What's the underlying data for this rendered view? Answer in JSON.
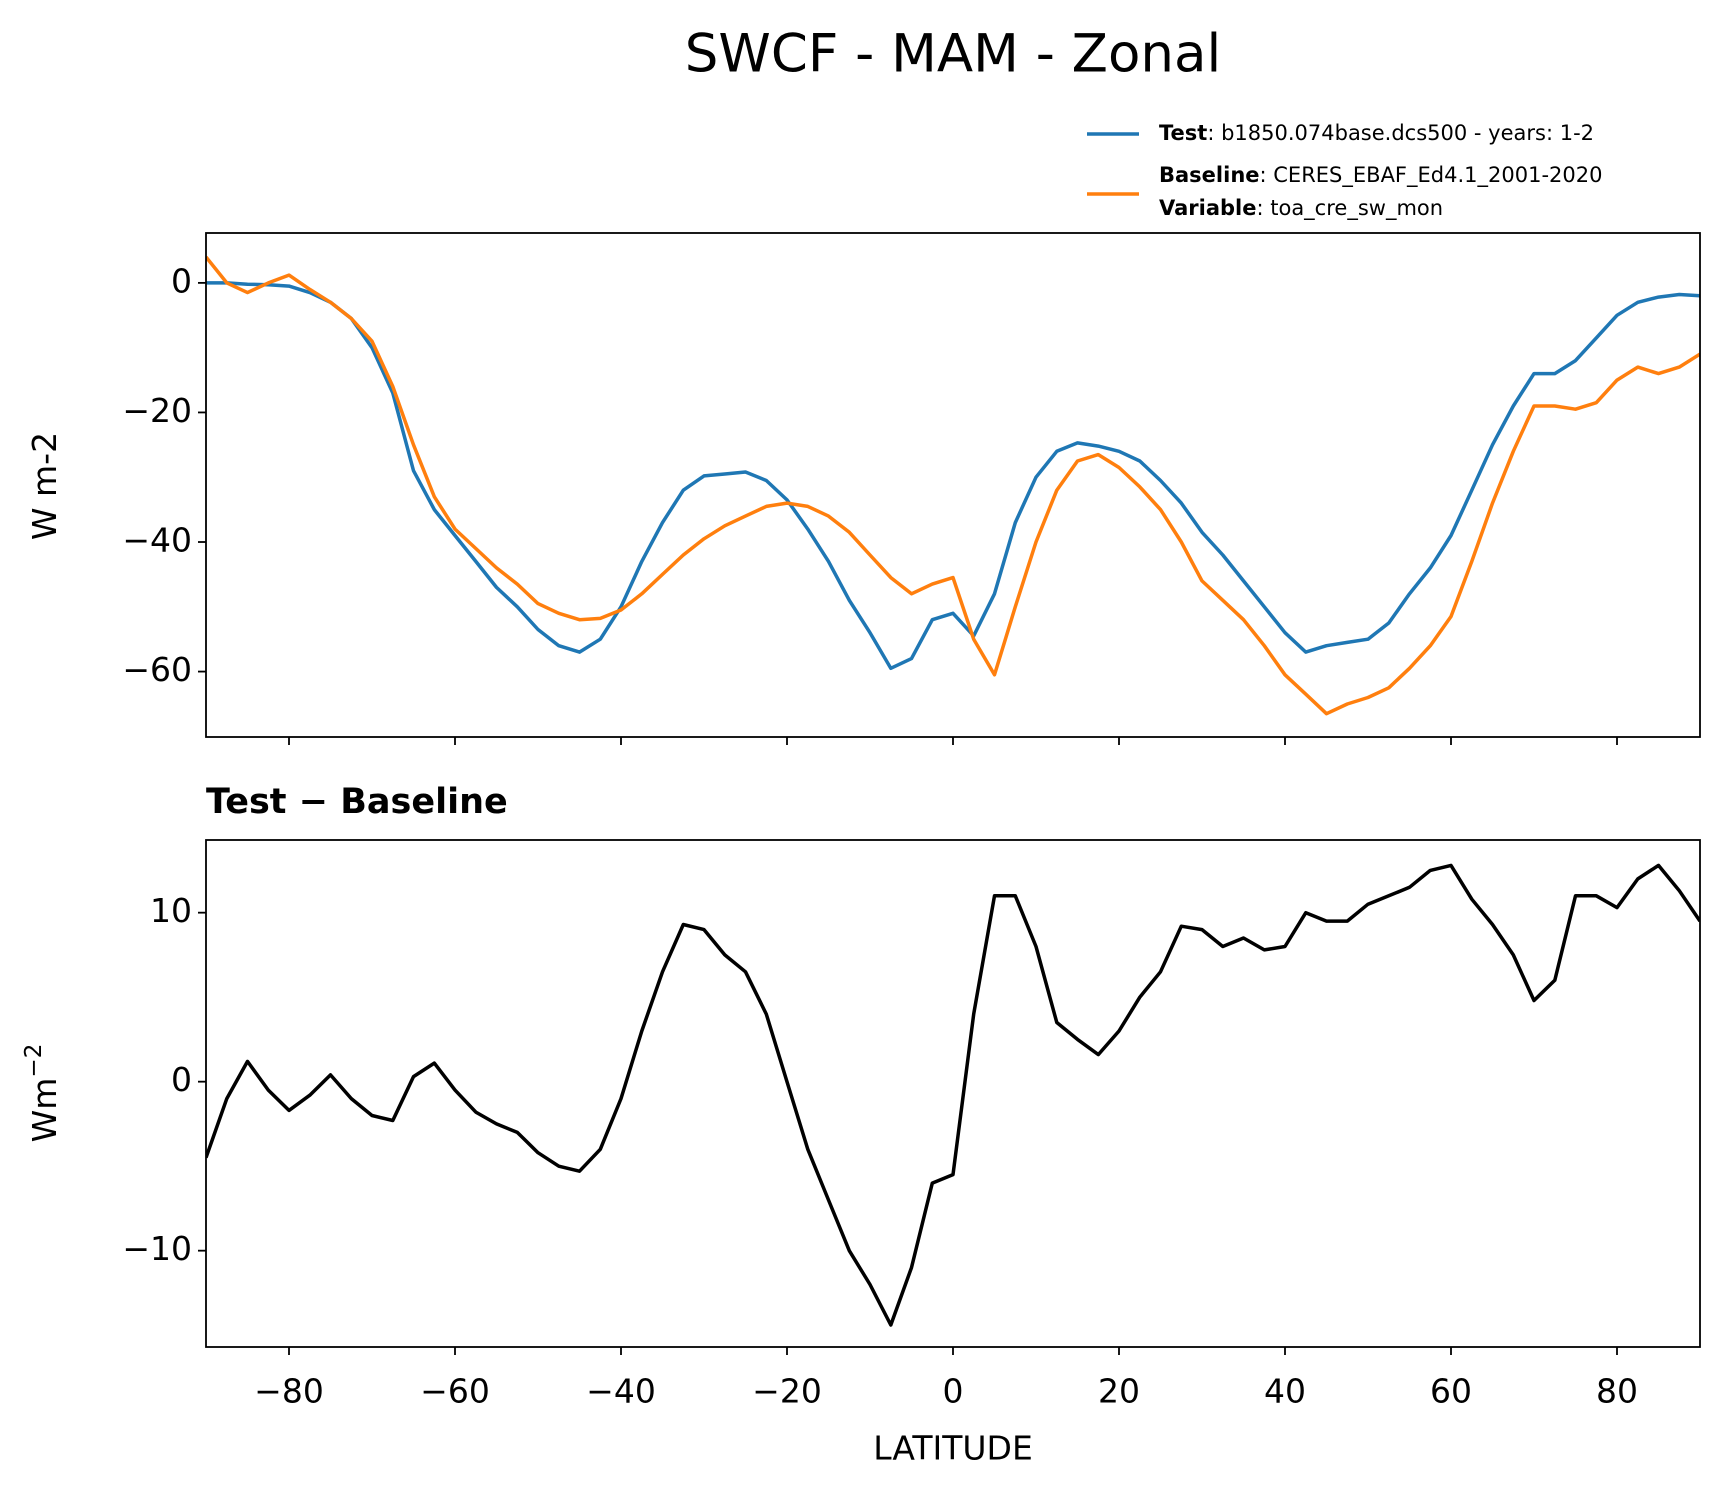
{
  "title": "SWCF - MAM - Zonal",
  "chart_data": [
    {
      "type": "line",
      "ylabel": "W m-2",
      "x": [
        -90,
        -87.5,
        -85,
        -82.5,
        -80,
        -77.5,
        -75,
        -72.5,
        -70,
        -67.5,
        -65,
        -62.5,
        -60,
        -57.5,
        -55,
        -52.5,
        -50,
        -47.5,
        -45,
        -42.5,
        -40,
        -37.5,
        -35,
        -32.5,
        -30,
        -27.5,
        -25,
        -22.5,
        -20,
        -17.5,
        -15,
        -12.5,
        -10,
        -7.5,
        -5,
        -2.5,
        0,
        2.5,
        5,
        7.5,
        10,
        12.5,
        15,
        17.5,
        20,
        22.5,
        25,
        27.5,
        30,
        32.5,
        35,
        37.5,
        40,
        42.5,
        45,
        47.5,
        50,
        52.5,
        55,
        57.5,
        60,
        62.5,
        65,
        67.5,
        70,
        72.5,
        75,
        77.5,
        80,
        82.5,
        85,
        87.5,
        90
      ],
      "series": [
        {
          "name": "Test",
          "description": ": b1850.074base.dcs500 - years: 1-2",
          "color": "#1f77b4",
          "values": [
            0,
            0,
            -0.2,
            -0.3,
            -0.5,
            -1.5,
            -3,
            -5.5,
            -10,
            -17,
            -29,
            -35,
            -39,
            -43,
            -47,
            -50,
            -53.5,
            -56,
            -57,
            -55,
            -50,
            -43,
            -37,
            -32,
            -29.8,
            -29.5,
            -29.2,
            -30.5,
            -33.5,
            -38,
            -43,
            -49,
            -54,
            -59.5,
            -58,
            -52,
            -51,
            -54.5,
            -48,
            -37,
            -30,
            -26,
            -24.7,
            -25.2,
            -26,
            -27.5,
            -30.5,
            -34,
            -38.5,
            -42,
            -46,
            -50,
            -54,
            -57,
            -56,
            -55.5,
            -55,
            -52.5,
            -48,
            -44,
            -39,
            -32,
            -25,
            -19,
            -14,
            -14,
            -12,
            -8.5,
            -5,
            -3,
            -2.2,
            -1.8,
            -2
          ]
        },
        {
          "name": "Baseline",
          "description": ": CERES_EBAF_Ed4.1_2001-2020",
          "color": "#ff7f0e",
          "values": [
            4,
            0,
            -1.5,
            0,
            1.2,
            -1,
            -3,
            -5.5,
            -9,
            -16,
            -25,
            -33,
            -38,
            -41,
            -44,
            -46.5,
            -49.5,
            -51,
            -52,
            -51.8,
            -50.5,
            -48,
            -45,
            -42,
            -39.5,
            -37.5,
            -36,
            -34.5,
            -34,
            -34.5,
            -36,
            -38.5,
            -42,
            -45.5,
            -48,
            -46.5,
            -45.5,
            -55,
            -60.5,
            -50,
            -40,
            -32,
            -27.5,
            -26.5,
            -28.5,
            -31.5,
            -35,
            -40,
            -46,
            -49,
            -52,
            -56,
            -60.5,
            -63.5,
            -66.5,
            -65,
            -64,
            -62.5,
            -59.5,
            -56,
            -51.5,
            -43,
            -34,
            -26,
            -19,
            -19,
            -19.5,
            -18.5,
            -15,
            -13,
            -14,
            -13,
            -11
          ]
        }
      ],
      "variable_label": "Variable",
      "variable": ": toa_cre_sw_mon",
      "xlim": [
        -90,
        90
      ],
      "xticks": [
        -80,
        -60,
        -40,
        -20,
        0,
        20,
        40,
        60,
        80
      ],
      "ylim": [
        -70.1,
        7.7
      ],
      "yticks": [
        {
          "value": 0,
          "label": "0"
        },
        {
          "value": -20,
          "label": "−20"
        },
        {
          "value": -40,
          "label": "−40"
        },
        {
          "value": -60,
          "label": "−60"
        }
      ]
    },
    {
      "type": "line",
      "title": "Test − Baseline",
      "ylabel": "Wm",
      "ylabel_sup": "−2",
      "xlabel": "LATITUDE",
      "color": "#000000",
      "x": [
        -90,
        -87.5,
        -85,
        -82.5,
        -80,
        -77.5,
        -75,
        -72.5,
        -70,
        -67.5,
        -65,
        -62.5,
        -60,
        -57.5,
        -55,
        -52.5,
        -50,
        -47.5,
        -45,
        -42.5,
        -40,
        -37.5,
        -35,
        -32.5,
        -30,
        -27.5,
        -25,
        -22.5,
        -20,
        -17.5,
        -15,
        -12.5,
        -10,
        -7.5,
        -5,
        -2.5,
        0,
        2.5,
        5,
        7.5,
        10,
        12.5,
        15,
        17.5,
        20,
        22.5,
        25,
        27.5,
        30,
        32.5,
        35,
        37.5,
        40,
        42.5,
        45,
        47.5,
        50,
        52.5,
        55,
        57.5,
        60,
        62.5,
        65,
        67.5,
        70,
        72.5,
        75,
        77.5,
        80,
        82.5,
        85,
        87.5,
        90
      ],
      "values": [
        -4.5,
        -1,
        1.2,
        -0.5,
        -1.7,
        -0.8,
        0.4,
        -1,
        -2,
        -2.3,
        0.3,
        1.1,
        -0.5,
        -1.8,
        -2.5,
        -3,
        -4.2,
        -5,
        -5.3,
        -4,
        -1,
        3,
        6.5,
        9.3,
        9,
        7.5,
        6.5,
        4,
        0,
        -4,
        -7,
        -10,
        -12,
        -14.4,
        -11,
        -6,
        -5.5,
        4,
        11,
        11,
        8,
        3.5,
        2.5,
        1.6,
        3,
        5,
        6.5,
        9.2,
        9,
        8,
        8.5,
        7.8,
        8,
        10,
        9.5,
        9.5,
        10.5,
        11,
        11.5,
        12.5,
        12.8,
        10.8,
        9.3,
        7.5,
        4.8,
        6,
        11,
        11,
        10.3,
        12,
        12.8,
        11.3,
        9.5
      ],
      "xlim": [
        -90,
        90
      ],
      "xticks": [
        {
          "value": -80,
          "label": "−80"
        },
        {
          "value": -60,
          "label": "−60"
        },
        {
          "value": -40,
          "label": "−40"
        },
        {
          "value": -20,
          "label": "−20"
        },
        {
          "value": 0,
          "label": "0"
        },
        {
          "value": 20,
          "label": "20"
        },
        {
          "value": 40,
          "label": "40"
        },
        {
          "value": 60,
          "label": "60"
        },
        {
          "value": 80,
          "label": "80"
        }
      ],
      "ylim": [
        -15.7,
        14.3
      ],
      "yticks": [
        {
          "value": -10,
          "label": "−10"
        },
        {
          "value": 0,
          "label": "0"
        },
        {
          "value": 10,
          "label": "10"
        }
      ]
    }
  ]
}
